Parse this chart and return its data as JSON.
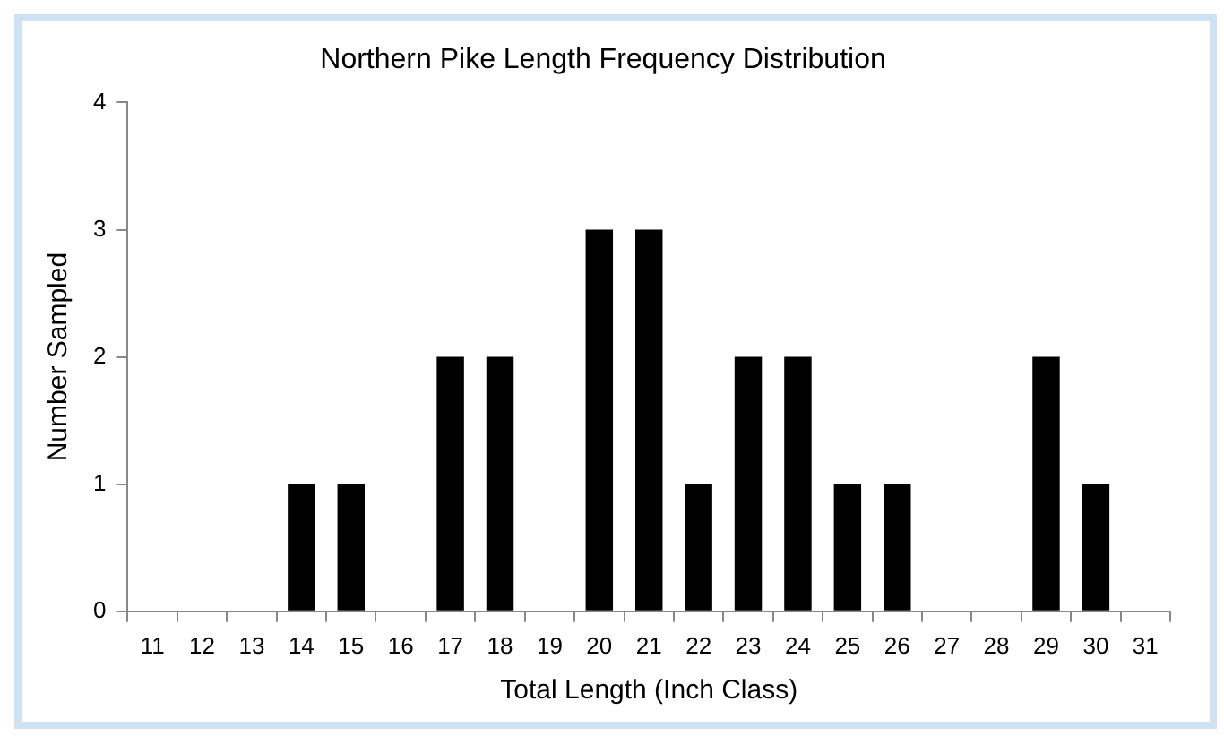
{
  "chart_data": {
    "type": "bar",
    "title": "Northern Pike Length Frequency Distribution",
    "xlabel": "Total Length (Inch Class)",
    "ylabel": "Number Sampled",
    "categories": [
      "11",
      "12",
      "13",
      "14",
      "15",
      "16",
      "17",
      "18",
      "19",
      "20",
      "21",
      "22",
      "23",
      "24",
      "25",
      "26",
      "27",
      "28",
      "29",
      "30",
      "31"
    ],
    "values": [
      0,
      0,
      0,
      1,
      1,
      0,
      2,
      2,
      0,
      3,
      3,
      1,
      2,
      2,
      1,
      1,
      0,
      0,
      2,
      1,
      0
    ],
    "color": "#000000",
    "ylim": [
      0,
      4
    ],
    "yticks": [
      0,
      1,
      2,
      3,
      4
    ],
    "grid": false,
    "legend": false
  }
}
